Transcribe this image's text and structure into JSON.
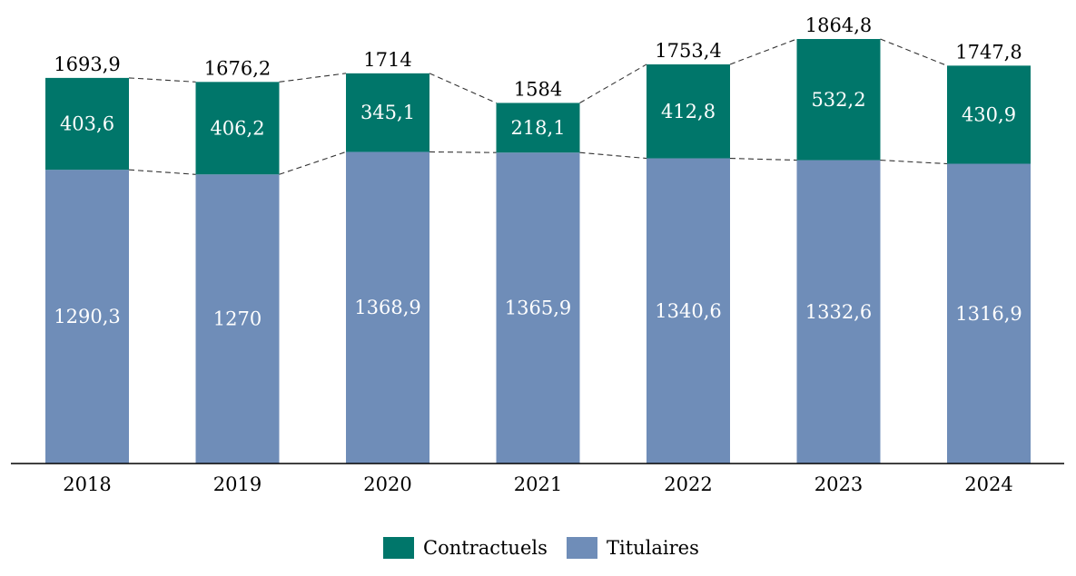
{
  "chart_data": {
    "type": "bar",
    "stacked": true,
    "categories": [
      "2018",
      "2019",
      "2020",
      "2021",
      "2022",
      "2023",
      "2024"
    ],
    "series": [
      {
        "name": "Titulaires",
        "color": "#6f8db8",
        "values": [
          1290.3,
          1270,
          1368.9,
          1365.9,
          1340.6,
          1332.6,
          1316.9
        ],
        "labels": [
          "1290,3",
          "1270",
          "1368,9",
          "1365,9",
          "1340,6",
          "1332,6",
          "1316,9"
        ]
      },
      {
        "name": "Contractuels",
        "color": "#00766a",
        "values": [
          403.6,
          406.2,
          345.1,
          218.1,
          412.8,
          532.2,
          430.9
        ],
        "labels": [
          "403,6",
          "406,2",
          "345,1",
          "218,1",
          "412,8",
          "532,2",
          "430,9"
        ]
      }
    ],
    "totals": [
      1693.9,
      1676.2,
      1714,
      1584,
      1753.4,
      1864.8,
      1747.8
    ],
    "total_labels": [
      "1693,9",
      "1676,2",
      "1714",
      "1584",
      "1753,4",
      "1864,8",
      "1747,8"
    ],
    "ylim": [
      0,
      1864.8
    ],
    "grid": false,
    "legend": {
      "placement": "bottom",
      "items": [
        "Contractuels",
        "Titulaires"
      ]
    },
    "title": "",
    "xlabel": "",
    "ylabel": ""
  }
}
